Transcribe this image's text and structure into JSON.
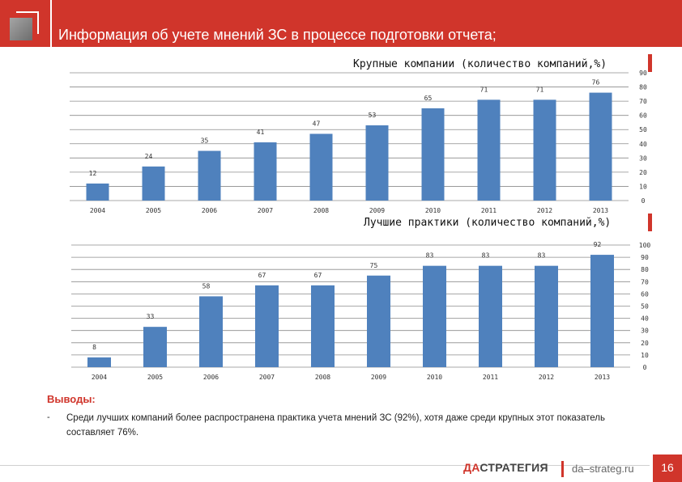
{
  "header": {
    "title": "Информация об учете мнений ЗС в процессе подготовки отчета;"
  },
  "colors": {
    "accent": "#d0352b",
    "bar": "#4f81bd",
    "grid": "#8c8c8c"
  },
  "chart_data": [
    {
      "type": "bar",
      "title": "Крупные компании (количество компаний,%)",
      "categories": [
        "2004",
        "2005",
        "2006",
        "2007",
        "2008",
        "2009",
        "2010",
        "2011",
        "2012",
        "2013"
      ],
      "values": [
        12,
        24,
        35,
        41,
        47,
        53,
        65,
        71,
        71,
        76
      ],
      "ylim": [
        0,
        90
      ],
      "yticks": [
        0,
        10,
        20,
        30,
        40,
        50,
        60,
        70,
        80,
        90
      ],
      "grid": true,
      "yaxis_side": "right",
      "xlabel": "",
      "ylabel": ""
    },
    {
      "type": "bar",
      "title": "Лучшие практики (количество компаний,%)",
      "categories": [
        "2004",
        "2005",
        "2006",
        "2007",
        "2008",
        "2009",
        "2010",
        "2011",
        "2012",
        "2013"
      ],
      "values": [
        8,
        33,
        58,
        67,
        67,
        75,
        83,
        83,
        83,
        92
      ],
      "ylim": [
        0,
        100
      ],
      "yticks": [
        0,
        10,
        20,
        30,
        40,
        50,
        60,
        70,
        80,
        90,
        100
      ],
      "grid": true,
      "yaxis_side": "right",
      "xlabel": "",
      "ylabel": ""
    }
  ],
  "conclusions": {
    "label": "Выводы:",
    "dash": "-",
    "text": "Среди лучших компаний более распространена практика учета мнений ЗС (92%), хотя даже среди крупных этот показатель составляет 76%."
  },
  "footer": {
    "brand_da": "ДА",
    "brand_rest": "СТРАТЕГИЯ",
    "site": "da–strateg.ru",
    "page": "16"
  }
}
